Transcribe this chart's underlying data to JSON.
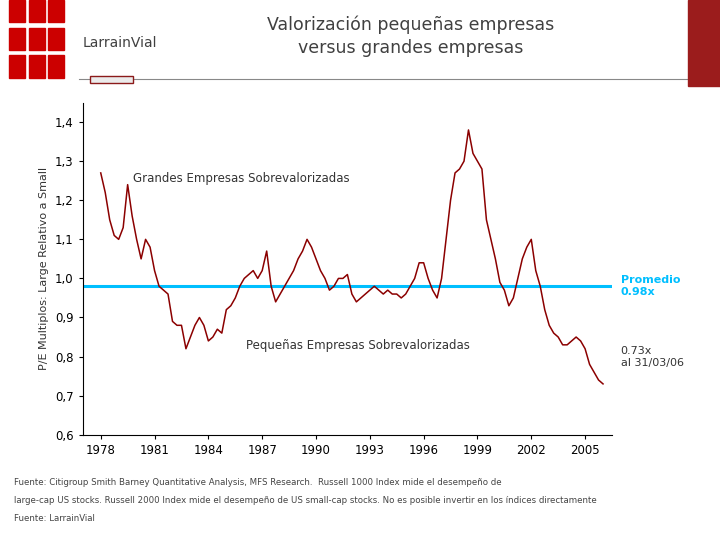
{
  "title": "Valorización pequeñas empresas\nversus grandes empresas",
  "ylabel": "P/E Multiplos: Large Relativo a Small",
  "ylim": [
    0.6,
    1.45
  ],
  "yticks": [
    0.6,
    0.7,
    0.8,
    0.9,
    1.0,
    1.1,
    1.2,
    1.3,
    1.4
  ],
  "ytick_labels": [
    "0,6",
    "0,7",
    "0,8",
    "0,9",
    "1,0",
    "1,1",
    "1,2",
    "1,3",
    "1,4"
  ],
  "xticks": [
    1978,
    1981,
    1984,
    1987,
    1990,
    1993,
    1996,
    1999,
    2002,
    2005
  ],
  "xlim": [
    1977.0,
    2006.5
  ],
  "avg_value": 0.98,
  "avg_label": "Promedio\n0.98x",
  "end_label": "0.73x\nal 31/03/06",
  "grandes_label": "Grandes Empresas Sobrevalorizadas",
  "pequenas_label": "Pequeñas Empresas Sobrevalorizadas",
  "line_color": "#8B0000",
  "avg_line_color": "#00BFFF",
  "avg_label_color": "#00BFFF",
  "header_bg": "#EBEBEB",
  "title_color": "#404040",
  "logo_red": "#CC0000",
  "right_bar_color": "#9B1C1C",
  "footer_text1": "Fuente: Citigroup Smith Barney Quantitative Analysis, MFS Research.  Russell 1000 Index mide el desempeño de",
  "footer_text2": "large-cap US stocks. Russell 2000 Index mide el desempeño de US small-cap stocks. No es posible invertir en los índices directamente",
  "footer_text3": "Fuente: LarrainVial",
  "series_years": [
    1978.0,
    1978.25,
    1978.5,
    1978.75,
    1979.0,
    1979.25,
    1979.5,
    1979.75,
    1980.0,
    1980.25,
    1980.5,
    1980.75,
    1981.0,
    1981.25,
    1981.5,
    1981.75,
    1982.0,
    1982.25,
    1982.5,
    1982.75,
    1983.0,
    1983.25,
    1983.5,
    1983.75,
    1984.0,
    1984.25,
    1984.5,
    1984.75,
    1985.0,
    1985.25,
    1985.5,
    1985.75,
    1986.0,
    1986.25,
    1986.5,
    1986.75,
    1987.0,
    1987.25,
    1987.5,
    1987.75,
    1988.0,
    1988.25,
    1988.5,
    1988.75,
    1989.0,
    1989.25,
    1989.5,
    1989.75,
    1990.0,
    1990.25,
    1990.5,
    1990.75,
    1991.0,
    1991.25,
    1991.5,
    1991.75,
    1992.0,
    1992.25,
    1992.5,
    1992.75,
    1993.0,
    1993.25,
    1993.5,
    1993.75,
    1994.0,
    1994.25,
    1994.5,
    1994.75,
    1995.0,
    1995.25,
    1995.5,
    1995.75,
    1996.0,
    1996.25,
    1996.5,
    1996.75,
    1997.0,
    1997.25,
    1997.5,
    1997.75,
    1998.0,
    1998.25,
    1998.5,
    1998.75,
    1999.0,
    1999.25,
    1999.5,
    1999.75,
    2000.0,
    2000.25,
    2000.5,
    2000.75,
    2001.0,
    2001.25,
    2001.5,
    2001.75,
    2002.0,
    2002.25,
    2002.5,
    2002.75,
    2003.0,
    2003.25,
    2003.5,
    2003.75,
    2004.0,
    2004.25,
    2004.5,
    2004.75,
    2005.0,
    2005.25,
    2005.5,
    2005.75,
    2006.0
  ],
  "series_values": [
    1.27,
    1.22,
    1.15,
    1.11,
    1.1,
    1.13,
    1.24,
    1.16,
    1.1,
    1.05,
    1.1,
    1.08,
    1.02,
    0.98,
    0.97,
    0.96,
    0.89,
    0.88,
    0.88,
    0.82,
    0.85,
    0.88,
    0.9,
    0.88,
    0.84,
    0.85,
    0.87,
    0.86,
    0.92,
    0.93,
    0.95,
    0.98,
    1.0,
    1.01,
    1.02,
    1.0,
    1.02,
    1.07,
    0.98,
    0.94,
    0.96,
    0.98,
    1.0,
    1.02,
    1.05,
    1.07,
    1.1,
    1.08,
    1.05,
    1.02,
    1.0,
    0.97,
    0.98,
    1.0,
    1.0,
    1.01,
    0.96,
    0.94,
    0.95,
    0.96,
    0.97,
    0.98,
    0.97,
    0.96,
    0.97,
    0.96,
    0.96,
    0.95,
    0.96,
    0.98,
    1.0,
    1.04,
    1.04,
    1.0,
    0.97,
    0.95,
    1.0,
    1.1,
    1.2,
    1.27,
    1.28,
    1.3,
    1.38,
    1.32,
    1.3,
    1.28,
    1.15,
    1.1,
    1.05,
    0.99,
    0.97,
    0.93,
    0.95,
    1.0,
    1.05,
    1.08,
    1.1,
    1.02,
    0.98,
    0.92,
    0.88,
    0.86,
    0.85,
    0.83,
    0.83,
    0.84,
    0.85,
    0.84,
    0.82,
    0.78,
    0.76,
    0.74,
    0.73
  ]
}
